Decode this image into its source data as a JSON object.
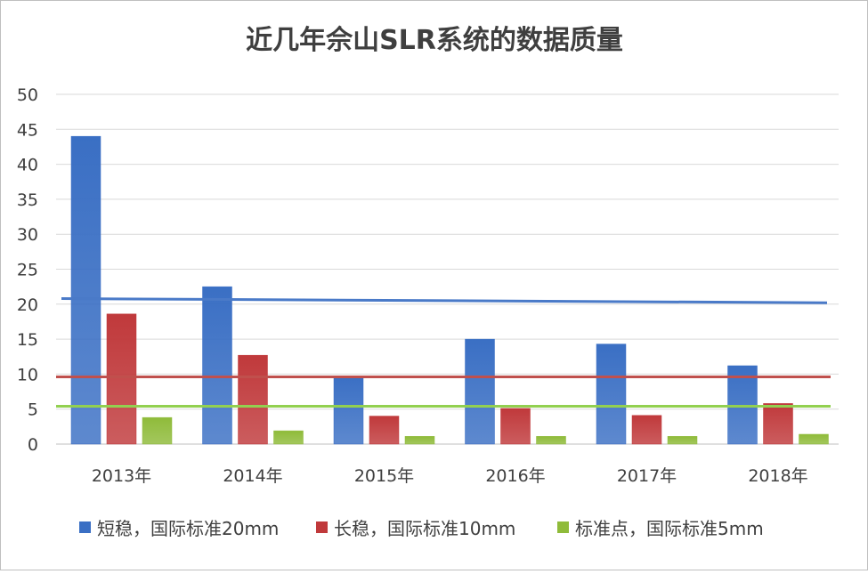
{
  "chart_data": {
    "type": "bar",
    "title": "近几年佘山SLR系统的数据质量",
    "xlabel": "",
    "ylabel": "",
    "categories": [
      "2013年",
      "2014年",
      "2015年",
      "2016年",
      "2017年",
      "2018年"
    ],
    "series": [
      {
        "name": "短稳，国际标准20mm",
        "color": "#3a6fc4",
        "values": [
          44,
          22.5,
          9.7,
          15,
          14.3,
          11.2
        ]
      },
      {
        "name": "长稳，国际标准10mm",
        "color": "#c0393b",
        "values": [
          18.6,
          12.7,
          4,
          5.1,
          4.1,
          5.8
        ]
      },
      {
        "name": "标准点，国际标准5mm",
        "color": "#8fbb3a",
        "values": [
          3.8,
          1.9,
          1.1,
          1.1,
          1.1,
          1.4
        ]
      }
    ],
    "reference_lines": [
      {
        "color": "#4a7ac8",
        "y_start": 20.8,
        "y_end": 20.2
      },
      {
        "color": "#c0504d",
        "y_start": 9.6,
        "y_end": 9.6
      },
      {
        "color": "#92d050",
        "y_start": 5.4,
        "y_end": 5.4
      }
    ],
    "ylim": [
      0,
      50
    ],
    "yticks": [
      "0",
      "5",
      "10",
      "15",
      "20",
      "25",
      "30",
      "35",
      "40",
      "45",
      "50"
    ],
    "grid": true,
    "legend_position": "bottom"
  }
}
